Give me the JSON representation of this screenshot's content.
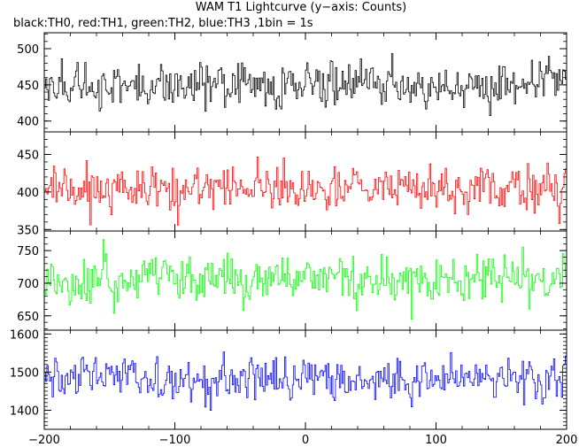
{
  "chart_data": {
    "type": "line",
    "title": "WAM T1 Lightcurve (y−axis: Counts)",
    "subtitle": "black:TH0, red:TH1, green:TH2, blue:TH3 ,1bin = 1s",
    "xlabel": "",
    "x_range": [
      -200,
      200
    ],
    "x_step": 1,
    "x_ticks": [
      -200,
      -100,
      0,
      100,
      200
    ],
    "x_tick_labels": [
      "−200",
      "−100",
      "0",
      "100",
      "200"
    ],
    "grid": false,
    "series": [
      {
        "name": "TH0",
        "color": "#000000",
        "mean": 450,
        "noise": 21,
        "ylim": [
          385,
          522
        ],
        "yticks": [
          400,
          450,
          500
        ],
        "ytick_labels": [
          "400",
          "450",
          "500"
        ]
      },
      {
        "name": "TH1",
        "color": "#ff0000",
        "mean": 405,
        "noise": 20,
        "ylim": [
          348,
          480
        ],
        "yticks": [
          350,
          400,
          450
        ],
        "ytick_labels": [
          "350",
          "400",
          "450"
        ]
      },
      {
        "name": "TH2",
        "color": "#00ff00",
        "mean": 705,
        "noise": 26,
        "ylim": [
          628,
          780
        ],
        "yticks": [
          650,
          700,
          750
        ],
        "ytick_labels": [
          "650",
          "700",
          "750"
        ]
      },
      {
        "name": "TH3",
        "color": "#0000ff",
        "mean": 1480,
        "noise": 38,
        "ylim": [
          1350,
          1610
        ],
        "yticks": [
          1400,
          1500,
          1600
        ],
        "ytick_labels": [
          "1400",
          "1500",
          "1600"
        ]
      }
    ]
  }
}
